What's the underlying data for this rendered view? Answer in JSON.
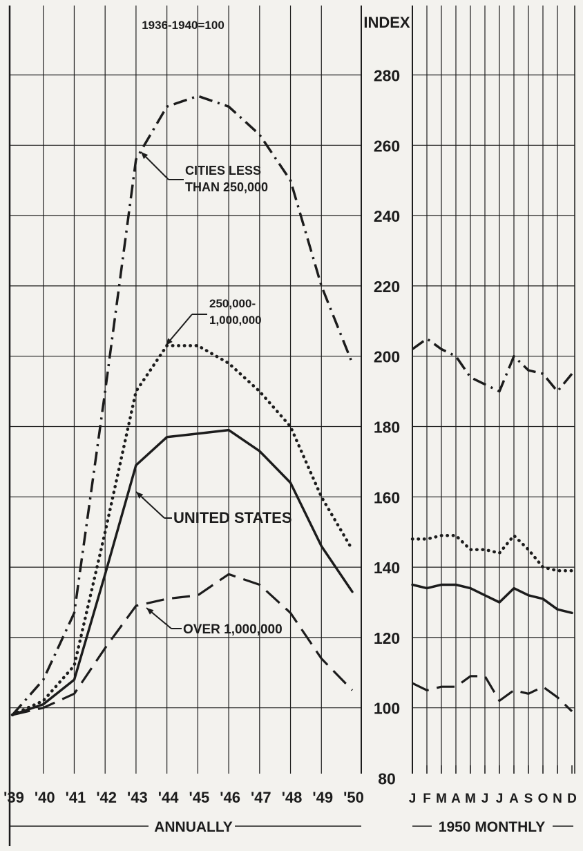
{
  "chart_data": {
    "type": "line",
    "note": "1936-1940=100",
    "ylabel": "INDEX",
    "ylim": [
      80,
      290
    ],
    "y_ticks": [
      80,
      100,
      120,
      140,
      160,
      180,
      200,
      220,
      240,
      260,
      280
    ],
    "grid": true,
    "panels": {
      "annual": {
        "label": "ANNUALLY",
        "x": [
          "'39",
          "'40",
          "'41",
          "'42",
          "'43",
          "'44",
          "'45",
          "'46",
          "'47",
          "'48",
          "'49",
          "'50"
        ]
      },
      "monthly": {
        "label": "1950 MONTHLY",
        "x": [
          "J",
          "F",
          "M",
          "A",
          "M",
          "J",
          "J",
          "A",
          "S",
          "O",
          "N",
          "D"
        ]
      }
    },
    "series": [
      {
        "name": "CITIES LESS THAN 250,000",
        "style": "dash-dot",
        "annual": [
          98,
          108,
          127,
          190,
          256,
          271,
          274,
          271,
          263,
          250,
          220,
          198
        ],
        "monthly": [
          202,
          205,
          202,
          200,
          194,
          192,
          190,
          200,
          196,
          195,
          190,
          195
        ]
      },
      {
        "name": "250,000-1,000,000",
        "style": "dotted",
        "annual": [
          98,
          102,
          112,
          150,
          190,
          203,
          203,
          198,
          190,
          180,
          160,
          145
        ],
        "monthly": [
          148,
          148,
          149,
          149,
          145,
          145,
          144,
          149,
          145,
          140,
          139,
          139
        ]
      },
      {
        "name": "UNITED STATES",
        "style": "solid",
        "annual": [
          98,
          101,
          108,
          138,
          169,
          177,
          178,
          179,
          173,
          164,
          146,
          133
        ],
        "monthly": [
          135,
          134,
          135,
          135,
          134,
          132,
          130,
          134,
          132,
          131,
          128,
          127
        ]
      },
      {
        "name": "OVER 1,000,000",
        "style": "dashed",
        "annual": [
          98,
          100,
          104,
          117,
          129,
          131,
          132,
          138,
          135,
          127,
          114,
          105
        ],
        "monthly": [
          107,
          105,
          106,
          106,
          109,
          109,
          102,
          105,
          104,
          106,
          103,
          99
        ]
      }
    ],
    "annotations": [
      {
        "text": [
          "CITIES LESS",
          "THAN 250,000"
        ],
        "series": "CITIES LESS THAN 250,000"
      },
      {
        "text": [
          "250,000-",
          "1,000,000"
        ],
        "series": "250,000-1,000,000"
      },
      {
        "text": [
          "UNITED STATES"
        ],
        "series": "UNITED STATES"
      },
      {
        "text": [
          "OVER 1,000,000"
        ],
        "series": "OVER 1,000,000"
      }
    ],
    "colors": {
      "ink": "#1c1c1c",
      "paper": "#f3f2ee"
    }
  }
}
